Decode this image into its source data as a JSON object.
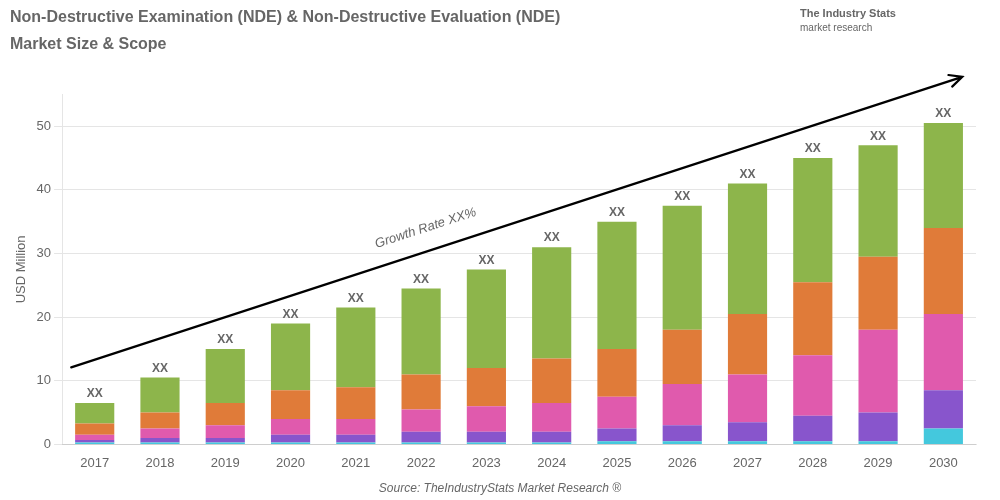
{
  "chart_data": {
    "type": "bar",
    "title": "Non-Destructive Examination (NDE) & Non-Destructive Evaluation (NDE)",
    "subtitle": "Market Size & Scope",
    "y_label": "USD Million",
    "categories": [
      "2017",
      "2018",
      "2019",
      "2020",
      "2021",
      "2022",
      "2023",
      "2024",
      "2025",
      "2026",
      "2027",
      "2028",
      "2029",
      "2030"
    ],
    "series": [
      {
        "color": "#44c8dd",
        "values": [
          0.3,
          0.3,
          0.3,
          0.3,
          0.3,
          0.3,
          0.3,
          0.3,
          0.5,
          0.5,
          0.5,
          0.5,
          0.5,
          2.5
        ]
      },
      {
        "color": "#8855cc",
        "values": [
          0.4,
          0.7,
          0.7,
          1.2,
          1.2,
          1.7,
          1.7,
          1.7,
          2.0,
          2.5,
          3.0,
          4.0,
          4.5,
          6.0
        ]
      },
      {
        "color": "#e05aad",
        "values": [
          0.8,
          1.5,
          2.0,
          2.5,
          2.5,
          3.5,
          4.0,
          4.5,
          5.0,
          6.5,
          7.5,
          9.5,
          13.0,
          12.0
        ]
      },
      {
        "color": "#e07b39",
        "values": [
          1.8,
          2.5,
          3.5,
          4.5,
          5.0,
          5.5,
          6.0,
          7.0,
          7.5,
          8.5,
          9.5,
          11.5,
          11.5,
          13.5
        ]
      },
      {
        "color": "#8db54b",
        "values": [
          3.2,
          5.5,
          8.5,
          10.5,
          12.5,
          13.5,
          15.5,
          17.5,
          20.0,
          19.5,
          20.5,
          19.5,
          17.5,
          16.5
        ]
      }
    ],
    "stacked": true,
    "bar_labels": [
      "XX",
      "XX",
      "XX",
      "XX",
      "XX",
      "XX",
      "XX",
      "XX",
      "XX",
      "XX",
      "XX",
      "XX",
      "XX",
      "XX"
    ],
    "annotations": [
      {
        "text": "Growth Rate XX%"
      }
    ],
    "watermark": [
      "The Industry Stats",
      "market research"
    ],
    "source": "Source: TheIndustryStats Market Research ®",
    "ylim": [
      0,
      55
    ],
    "yticks": [
      0,
      10,
      20,
      30,
      40,
      50
    ],
    "grid": true
  }
}
